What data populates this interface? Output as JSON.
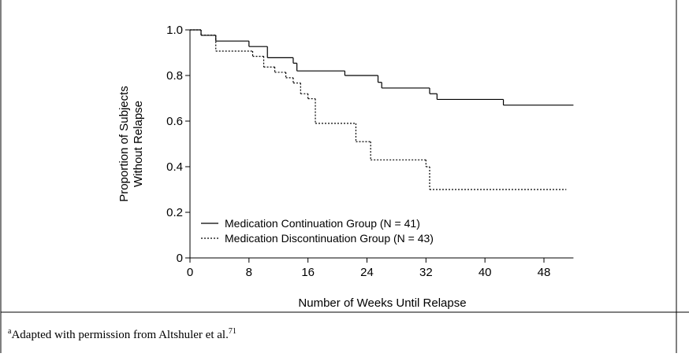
{
  "chart_data": {
    "type": "step",
    "xlabel": "Number of Weeks Until Relapse",
    "ylabel_lines": [
      "Proportion of Subjects",
      "Without Relapse"
    ],
    "xlim": [
      0,
      52
    ],
    "xticks": [
      0,
      8,
      16,
      24,
      32,
      40,
      48
    ],
    "ylim": [
      0,
      1
    ],
    "yticks": [
      0,
      0.2,
      0.4,
      0.6,
      0.8,
      {
        "value": 1,
        "label": "1.0"
      }
    ],
    "legend": "lower left",
    "series": [
      {
        "name": "Medication Continuation Group (N = 41)",
        "color": "#000000",
        "linestyle": "solid",
        "x": [
          0,
          1.5,
          3.5,
          8,
          10.5,
          14,
          14.5,
          21,
          25.5,
          26,
          32.5,
          33.5,
          42.5,
          52
        ],
        "values": [
          1,
          0.976,
          0.951,
          0.927,
          0.878,
          0.854,
          0.82,
          0.8,
          0.77,
          0.745,
          0.72,
          0.695,
          0.67,
          0.67
        ]
      },
      {
        "name": "Medication Discontinuation Group (N = 43)",
        "color": "#000000",
        "linestyle": "dotted",
        "x": [
          0,
          1.5,
          3.5,
          8.5,
          10,
          11.5,
          13,
          14,
          15,
          16,
          17,
          22.5,
          24.5,
          32,
          32.5,
          51
        ],
        "values": [
          1,
          0.977,
          0.907,
          0.884,
          0.837,
          0.814,
          0.79,
          0.767,
          0.72,
          0.698,
          0.59,
          0.51,
          0.43,
          0.4,
          0.3,
          0.3
        ]
      }
    ]
  },
  "footnote": {
    "marker": "a",
    "text": "Adapted with permission from Altshuler et al.",
    "reference": "71"
  }
}
